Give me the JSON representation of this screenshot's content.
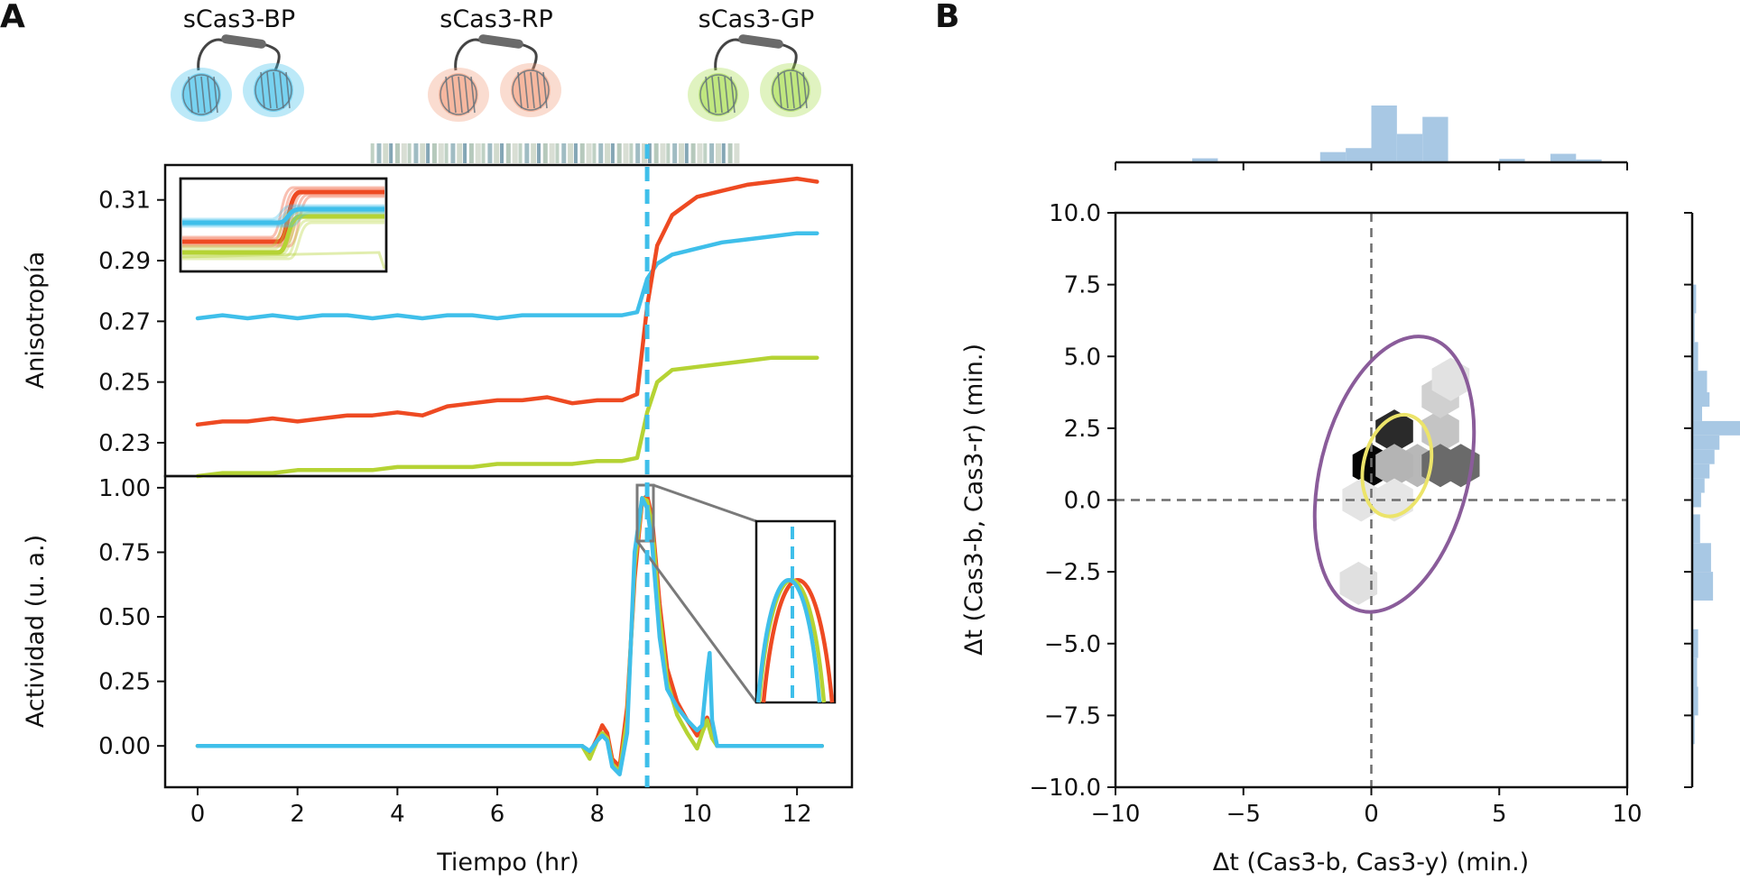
{
  "colors": {
    "blue": "#3fbfea",
    "red": "#ee4a22",
    "green": "#b5d334",
    "purple": "#8a5c9a",
    "yellow": "#ece46a",
    "hist": "#a8c8e4",
    "dash_gray": "#6e6e6e",
    "zoom_gray": "#7a7a7a"
  },
  "panel_a": {
    "label": "A",
    "sensors": [
      {
        "name": "sCas3-BP",
        "icon": "fret-sensor-icon",
        "color": "#3fbfea"
      },
      {
        "name": "sCas3-RP",
        "icon": "fret-sensor-icon",
        "color": "#f29a78"
      },
      {
        "name": "sCas3-GP",
        "icon": "fret-sensor-icon",
        "color": "#a6dc4a"
      }
    ],
    "rug": {
      "x_start": 3.5,
      "x_end": 10.9,
      "count": 60
    },
    "top": {
      "ylabel": "Anisotropía",
      "ylim": [
        0.219,
        0.3215
      ],
      "yticks": [
        "0.31",
        "0.29",
        "0.27",
        "0.25",
        "0.23"
      ],
      "yticks_values": [
        0.31,
        0.29,
        0.27,
        0.25,
        0.23
      ]
    },
    "bottom": {
      "ylabel": "Actividad (u. a.)",
      "ylim": [
        -0.16,
        1.045
      ],
      "yticks": [
        "1.00",
        "0.75",
        "0.50",
        "0.25",
        "0.00"
      ],
      "yticks_values": [
        1.0,
        0.75,
        0.5,
        0.25,
        0.0
      ]
    },
    "xlabel": "Tiempo (hr)",
    "xlim": [
      -0.65,
      13.1
    ],
    "xticks": [
      "0",
      "2",
      "4",
      "6",
      "8",
      "10",
      "12"
    ],
    "xticks_values": [
      0,
      2,
      4,
      6,
      8,
      10,
      12
    ],
    "vline_x": 9.0
  },
  "panel_b": {
    "label": "B",
    "xlabel": "Δt (Cas3-b, Cas3-y) (min.)",
    "ylabel": "Δt (Cas3-b, Cas3-r) (min.)",
    "xlim": [
      -10,
      10
    ],
    "ylim": [
      -10,
      10
    ],
    "xticks": [
      "−10",
      "−5",
      "0",
      "5",
      "10"
    ],
    "xticks_values": [
      -10,
      -5,
      0,
      5,
      10
    ],
    "yticks": [
      "10.0",
      "7.5",
      "5.0",
      "2.5",
      "0.0",
      "−2.5",
      "−5.0",
      "−7.5",
      "−10.0"
    ],
    "yticks_values": [
      10,
      7.5,
      5,
      2.5,
      0,
      -2.5,
      -5,
      -7.5,
      -10
    ]
  },
  "chart_data": [
    {
      "type": "line",
      "panel": "A-top",
      "xlabel": "Tiempo (hr)",
      "ylabel": "Anisotropía",
      "ylim": [
        0.219,
        0.3215
      ],
      "grid": false,
      "series": [
        {
          "color": "#3fbfea",
          "x": [
            0,
            0.5,
            1,
            1.5,
            2,
            2.5,
            3,
            3.5,
            4,
            4.5,
            5,
            5.5,
            6,
            6.5,
            7,
            7.5,
            8,
            8.5,
            8.8,
            9,
            9.2,
            9.5,
            10,
            10.5,
            11,
            11.5,
            12,
            12.4
          ],
          "y": [
            0.271,
            0.272,
            0.271,
            0.272,
            0.271,
            0.272,
            0.272,
            0.271,
            0.272,
            0.271,
            0.272,
            0.272,
            0.271,
            0.272,
            0.272,
            0.272,
            0.272,
            0.272,
            0.273,
            0.284,
            0.289,
            0.292,
            0.294,
            0.296,
            0.297,
            0.298,
            0.299,
            0.299
          ]
        },
        {
          "color": "#ee4a22",
          "x": [
            0,
            0.5,
            1,
            1.5,
            2,
            2.5,
            3,
            3.5,
            4,
            4.5,
            5,
            5.5,
            6,
            6.5,
            7,
            7.5,
            8,
            8.5,
            8.8,
            9,
            9.2,
            9.5,
            10,
            10.5,
            11,
            11.5,
            12,
            12.4
          ],
          "y": [
            0.236,
            0.237,
            0.237,
            0.238,
            0.237,
            0.238,
            0.239,
            0.239,
            0.24,
            0.239,
            0.242,
            0.243,
            0.244,
            0.244,
            0.245,
            0.243,
            0.244,
            0.244,
            0.246,
            0.275,
            0.295,
            0.305,
            0.311,
            0.313,
            0.315,
            0.316,
            0.317,
            0.316
          ]
        },
        {
          "color": "#b5d334",
          "x": [
            0,
            0.5,
            1,
            1.5,
            2,
            2.5,
            3,
            3.5,
            4,
            4.5,
            5,
            5.5,
            6,
            6.5,
            7,
            7.5,
            8,
            8.5,
            8.8,
            9,
            9.2,
            9.5,
            10,
            10.5,
            11,
            11.5,
            12,
            12.4
          ],
          "y": [
            0.219,
            0.22,
            0.22,
            0.22,
            0.221,
            0.221,
            0.221,
            0.221,
            0.222,
            0.222,
            0.222,
            0.222,
            0.223,
            0.223,
            0.223,
            0.223,
            0.224,
            0.224,
            0.225,
            0.24,
            0.25,
            0.254,
            0.255,
            0.256,
            0.257,
            0.258,
            0.258,
            0.258
          ]
        }
      ]
    },
    {
      "type": "line",
      "panel": "A-bottom",
      "xlabel": "Tiempo (hr)",
      "ylabel": "Actividad (u. a.)",
      "ylim": [
        -0.16,
        1.045
      ],
      "grid": false,
      "series": [
        {
          "color": "#ee4a22",
          "x": [
            0,
            7.7,
            7.85,
            8.0,
            8.1,
            8.2,
            8.3,
            8.45,
            8.6,
            8.75,
            8.9,
            9.0,
            9.1,
            9.25,
            9.4,
            9.6,
            9.8,
            10.0,
            10.1,
            10.2,
            10.3,
            10.4,
            12.5
          ],
          "y": [
            0,
            0,
            -0.03,
            0.03,
            0.08,
            0.05,
            -0.05,
            -0.08,
            0.15,
            0.65,
            0.95,
            0.97,
            0.88,
            0.55,
            0.3,
            0.17,
            0.1,
            0.04,
            0.06,
            0.11,
            0.05,
            0,
            0
          ]
        },
        {
          "color": "#b5d334",
          "x": [
            0,
            7.7,
            7.85,
            8.0,
            8.1,
            8.2,
            8.3,
            8.45,
            8.6,
            8.75,
            8.9,
            9.0,
            9.1,
            9.25,
            9.4,
            9.6,
            9.8,
            10.0,
            10.1,
            10.2,
            10.3,
            10.4,
            12.5
          ],
          "y": [
            0,
            0,
            -0.05,
            0.02,
            0.05,
            0.03,
            -0.07,
            -0.1,
            0.1,
            0.7,
            0.96,
            0.95,
            0.85,
            0.5,
            0.25,
            0.12,
            0.05,
            -0.01,
            0.05,
            0.1,
            0.03,
            0,
            0
          ]
        },
        {
          "color": "#3fbfea",
          "x": [
            0,
            7.7,
            7.85,
            8.0,
            8.1,
            8.2,
            8.3,
            8.45,
            8.6,
            8.75,
            8.9,
            9.0,
            9.1,
            9.25,
            9.4,
            9.6,
            9.8,
            10.0,
            10.1,
            10.2,
            10.25,
            10.3,
            10.4,
            12.5
          ],
          "y": [
            0,
            0,
            -0.02,
            0.02,
            0.04,
            0.02,
            -0.08,
            -0.11,
            0.05,
            0.75,
            0.96,
            0.92,
            0.78,
            0.42,
            0.22,
            0.15,
            0.1,
            0.06,
            0.08,
            0.28,
            0.36,
            0.1,
            0,
            0
          ]
        }
      ]
    },
    {
      "type": "heatmap",
      "panel": "B",
      "xlabel": "Δt (Cas3-b, Cas3-y) (min.)",
      "ylabel": "Δt (Cas3-b, Cas3-r) (min.)",
      "xlim": [
        -10,
        10
      ],
      "ylim": [
        -10,
        10
      ],
      "hexbins": [
        {
          "x": 0.0,
          "y": 1.2,
          "shade": "#050505"
        },
        {
          "x": 0.9,
          "y": 2.4,
          "shade": "#2a2a2a"
        },
        {
          "x": 1.8,
          "y": 1.2,
          "shade": "#b8b8b8"
        },
        {
          "x": 2.7,
          "y": 2.4,
          "shade": "#c4c4c4"
        },
        {
          "x": 2.7,
          "y": 3.6,
          "shade": "#d0d0d0"
        },
        {
          "x": 3.1,
          "y": 4.2,
          "shade": "#e2e2e2"
        },
        {
          "x": 2.7,
          "y": 1.2,
          "shade": "#6a6a6a"
        },
        {
          "x": 3.5,
          "y": 1.2,
          "shade": "#6a6a6a"
        },
        {
          "x": 0.9,
          "y": 1.2,
          "shade": "#b4b4b4"
        },
        {
          "x": -0.4,
          "y": 0.0,
          "shade": "#e4e4e4"
        },
        {
          "x": 0.9,
          "y": 0.0,
          "shade": "#e6e6e6"
        },
        {
          "x": -0.5,
          "y": -2.9,
          "shade": "#e0e0e0"
        }
      ],
      "ellipses": [
        {
          "color": "#8a5c9a",
          "cx": 0.9,
          "cy": 0.9,
          "rx": 2.9,
          "ry": 4.9,
          "rotation_deg": 14
        },
        {
          "color": "#ece46a",
          "cx": 1.0,
          "cy": 1.2,
          "rx": 1.3,
          "ry": 1.8,
          "rotation_deg": 14
        }
      ],
      "hist_x": {
        "bins": [
          -6.5,
          -5.5,
          -4.5,
          -3.5,
          -2.5,
          -1.5,
          -0.5,
          0.5,
          1.5,
          2.5,
          3.5,
          4.5,
          5.5,
          6.5,
          7.5,
          8.5
        ],
        "counts": [
          0.07,
          0,
          0,
          0,
          0,
          0.18,
          0.25,
          1.0,
          0.5,
          0.8,
          0,
          0,
          0.06,
          0,
          0.15,
          0.05
        ]
      },
      "hist_y": {
        "bins": [
          -8.0,
          -7.0,
          -6.0,
          -5.0,
          -4.0,
          -3.0,
          -2.0,
          -1.0,
          0.0,
          0.5,
          1.0,
          1.5,
          2.0,
          2.5,
          3.0,
          3.5,
          4.0,
          5.0,
          6.0,
          7.0
        ],
        "counts": [
          0.05,
          0.12,
          0.1,
          0.12,
          0,
          0.42,
          0.38,
          0.16,
          0.18,
          0.25,
          0.35,
          0.45,
          0.55,
          1.0,
          0.2,
          0.35,
          0.3,
          0.12,
          0.05,
          0.08
        ]
      }
    }
  ]
}
